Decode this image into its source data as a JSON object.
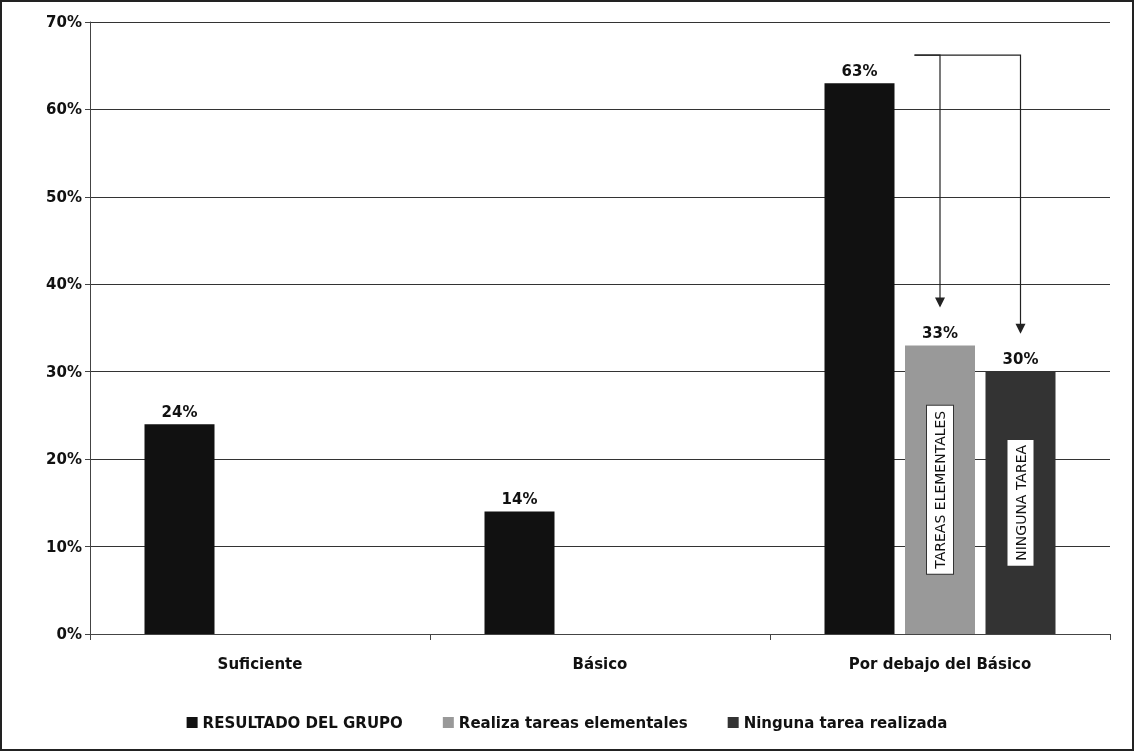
{
  "chart_data": {
    "type": "bar",
    "categories": [
      "Suficiente",
      "Básico",
      "Por debajo del Básico"
    ],
    "series": [
      {
        "name": "RESULTADO DEL GRUPO",
        "color": "#111111",
        "values": [
          24,
          14,
          63
        ],
        "value_labels": [
          "24%",
          "14%",
          "63%"
        ]
      },
      {
        "name": "Realiza tareas elementales",
        "color": "#999999",
        "values": [
          null,
          null,
          33
        ],
        "value_labels": [
          null,
          null,
          "33%"
        ]
      },
      {
        "name": "Ninguna tarea realizada",
        "color": "#333333",
        "values": [
          null,
          null,
          30
        ],
        "value_labels": [
          null,
          null,
          "30%"
        ]
      }
    ],
    "ylim": [
      0,
      70
    ],
    "yticks": [
      {
        "value": 0,
        "label": "0%"
      },
      {
        "value": 10,
        "label": "10%"
      },
      {
        "value": 20,
        "label": "20%"
      },
      {
        "value": 30,
        "label": "30%"
      },
      {
        "value": 40,
        "label": "40%"
      },
      {
        "value": 50,
        "label": "50%"
      },
      {
        "value": 60,
        "label": "60%"
      },
      {
        "value": 70,
        "label": "70%"
      }
    ],
    "annotations": [
      "TAREAS ELEMENTALES",
      "NINGUNA TAREA"
    ],
    "grid": "y",
    "legend": "bottom"
  }
}
